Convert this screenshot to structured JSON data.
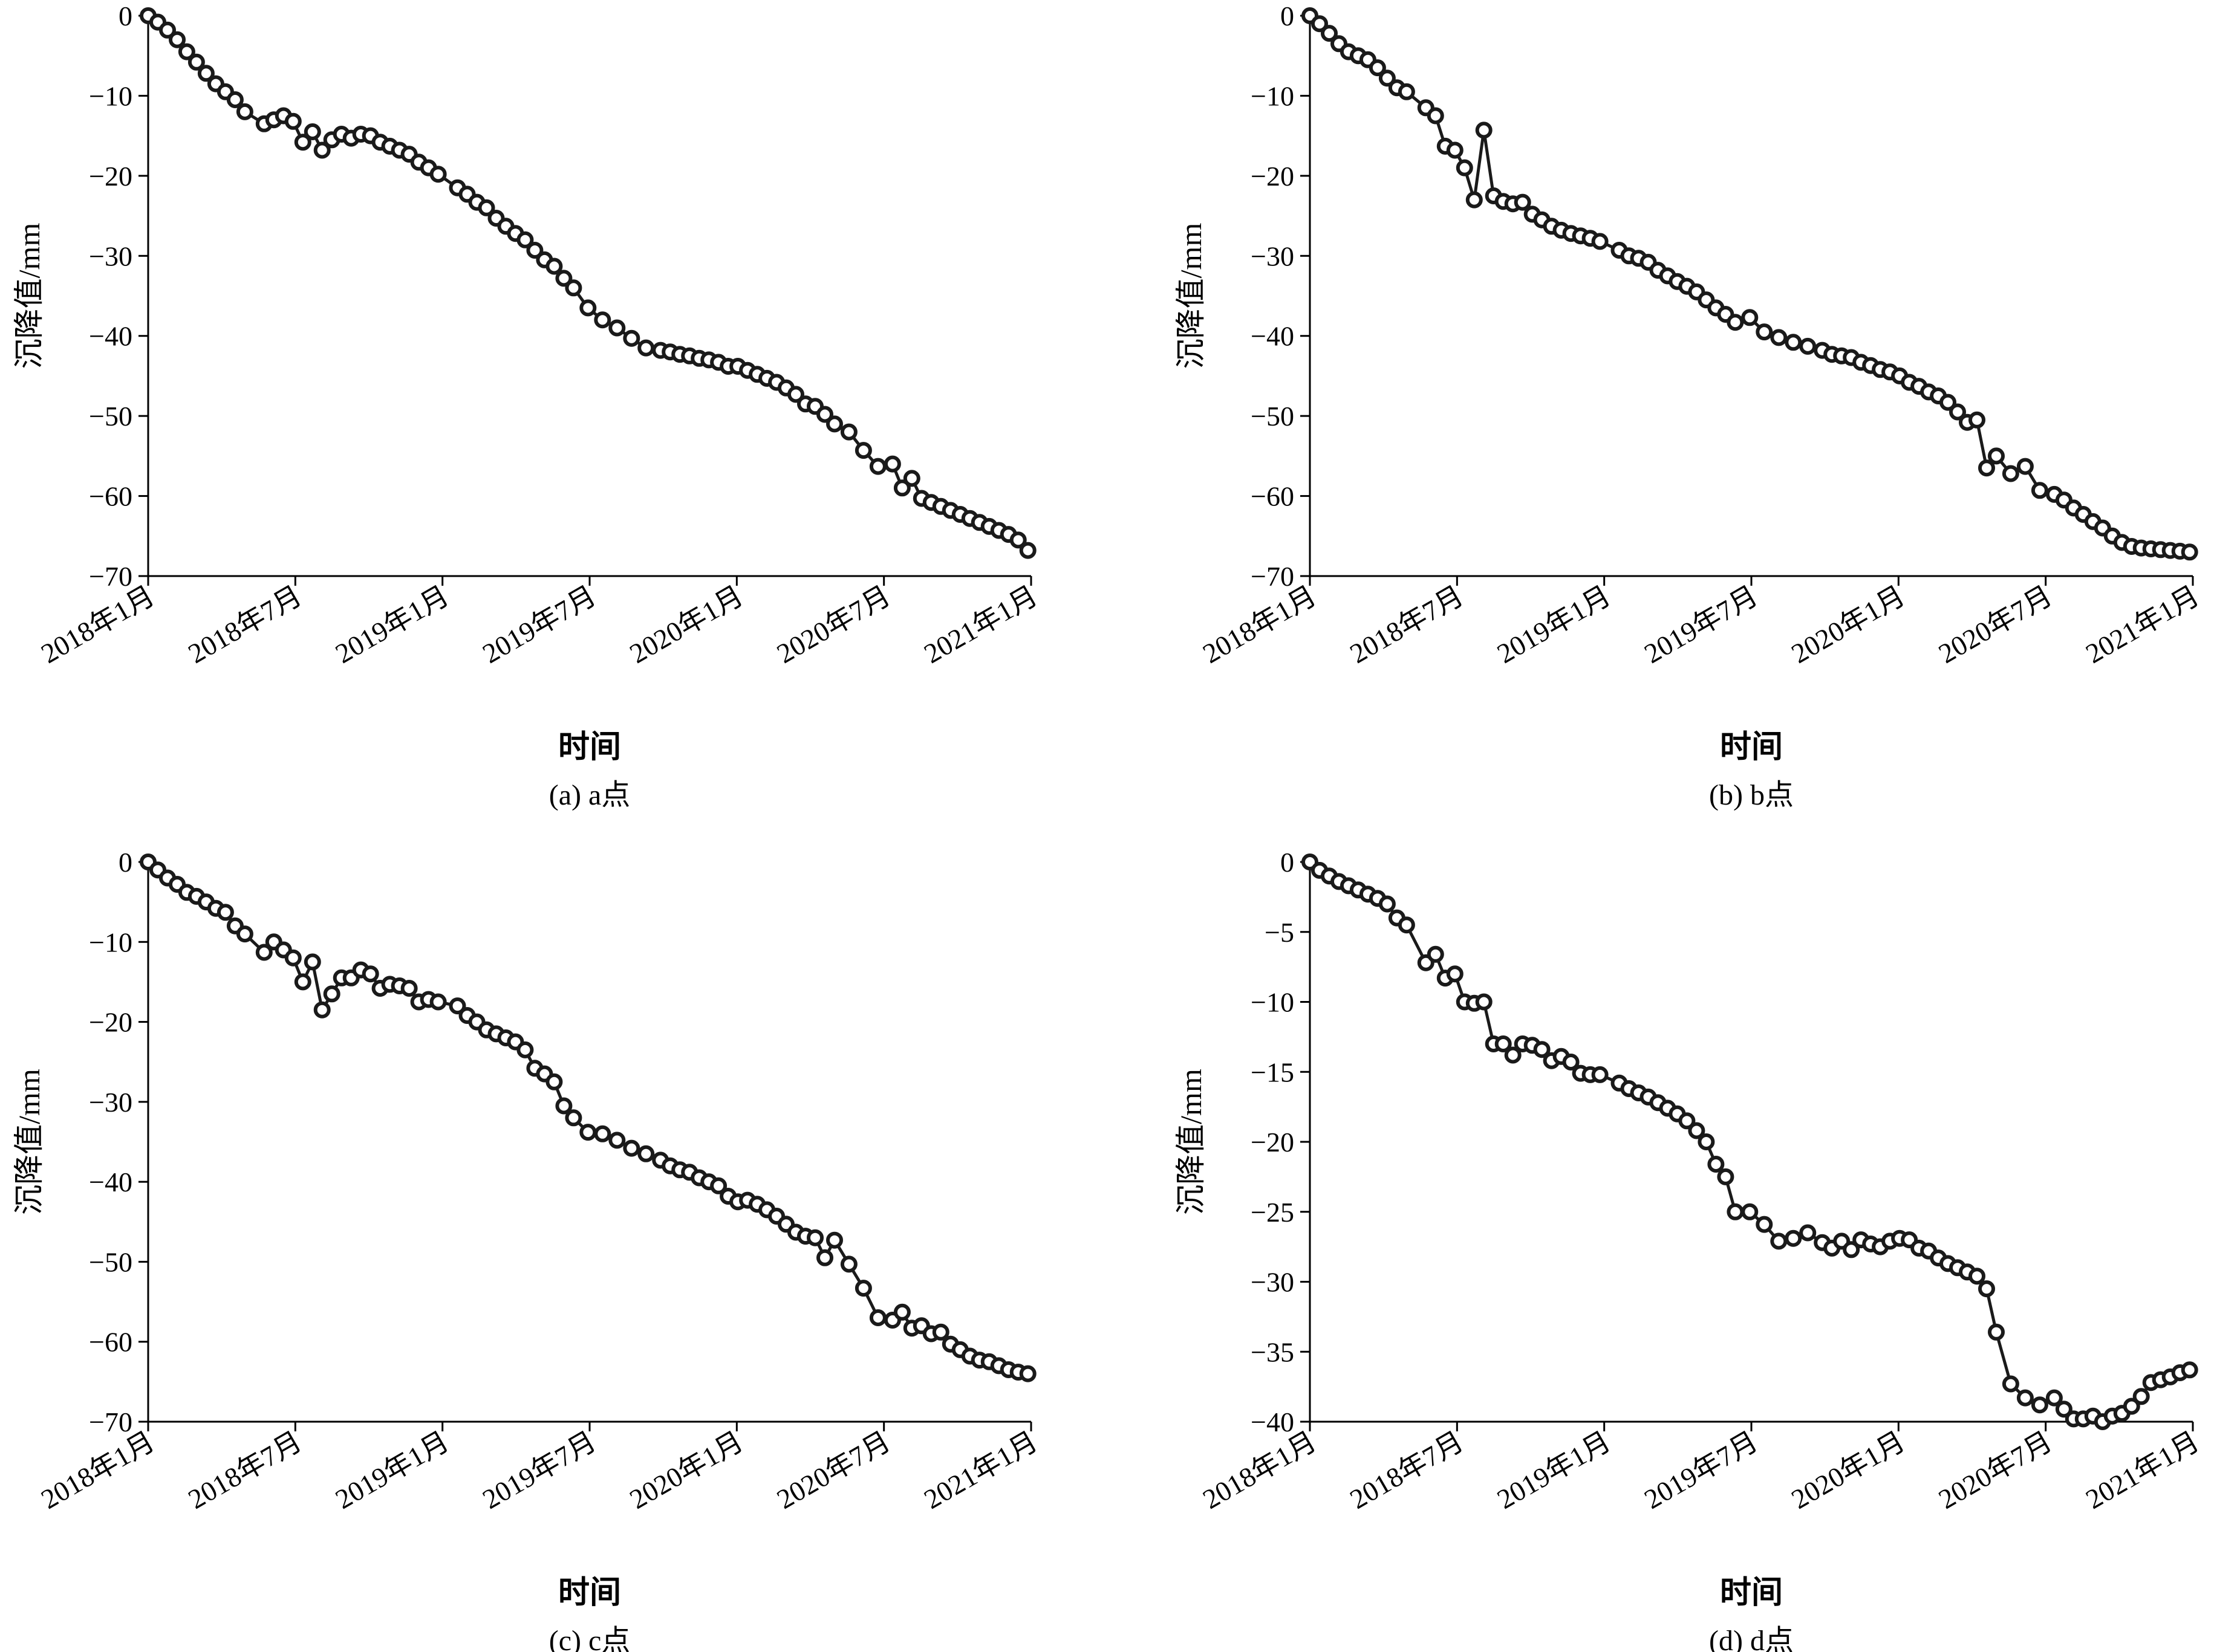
{
  "chart_data": [
    {
      "type": "line",
      "caption": "(a) a点",
      "xlabel": "时间",
      "ylabel": "沉降值/mm",
      "xlim": [
        "2018-01-01",
        "2021-01-01"
      ],
      "ylim": [
        -70,
        0
      ],
      "yticks": [
        0,
        -10,
        -20,
        -30,
        -40,
        -50,
        -60,
        -70
      ],
      "xticks": [
        "2018年1月",
        "2018年7月",
        "2019年1月",
        "2019年7月",
        "2020年1月",
        "2020年7月",
        "2021年1月"
      ],
      "series": [
        {
          "x": [
            "2018-01-01",
            "2018-01-13",
            "2018-01-25",
            "2018-02-06",
            "2018-02-18",
            "2018-03-02",
            "2018-03-14",
            "2018-03-26",
            "2018-04-07",
            "2018-04-19",
            "2018-05-01",
            "2018-05-25",
            "2018-06-06",
            "2018-06-18",
            "2018-06-30",
            "2018-07-12",
            "2018-07-24",
            "2018-08-05",
            "2018-08-17",
            "2018-08-29",
            "2018-09-10",
            "2018-09-22",
            "2018-10-04",
            "2018-10-16",
            "2018-10-28",
            "2018-11-09",
            "2018-11-21",
            "2018-12-03",
            "2018-12-15",
            "2018-12-27",
            "2019-01-20",
            "2019-02-01",
            "2019-02-13",
            "2019-02-25",
            "2019-03-09",
            "2019-03-21",
            "2019-04-02",
            "2019-04-14",
            "2019-04-26",
            "2019-05-08",
            "2019-05-20",
            "2019-06-01",
            "2019-06-13",
            "2019-07-01",
            "2019-07-19",
            "2019-08-06",
            "2019-08-24",
            "2019-09-11",
            "2019-09-29",
            "2019-10-11",
            "2019-10-23",
            "2019-11-04",
            "2019-11-16",
            "2019-11-28",
            "2019-12-10",
            "2019-12-22",
            "2020-01-03",
            "2020-01-15",
            "2020-01-27",
            "2020-02-08",
            "2020-02-20",
            "2020-03-03",
            "2020-03-15",
            "2020-03-27",
            "2020-04-08",
            "2020-04-20",
            "2020-05-02",
            "2020-05-20",
            "2020-06-07",
            "2020-06-25",
            "2020-07-13",
            "2020-07-25",
            "2020-08-06",
            "2020-08-18",
            "2020-08-30",
            "2020-09-11",
            "2020-09-23",
            "2020-10-05",
            "2020-10-17",
            "2020-10-29",
            "2020-11-10",
            "2020-11-22",
            "2020-12-04",
            "2020-12-16",
            "2020-12-28"
          ],
          "y": [
            0,
            -0.8,
            -1.8,
            -3,
            -4.5,
            -5.8,
            -7.2,
            -8.5,
            -9.5,
            -10.5,
            -12,
            -13.5,
            -13,
            -12.5,
            -13.2,
            -15.8,
            -14.5,
            -16.8,
            -15.5,
            -14.8,
            -15.3,
            -14.8,
            -15,
            -15.8,
            -16.3,
            -16.8,
            -17.3,
            -18.3,
            -19,
            -19.8,
            -21.5,
            -22.3,
            -23.3,
            -24,
            -25.3,
            -26.3,
            -27.2,
            -28,
            -29.3,
            -30.5,
            -31.3,
            -32.8,
            -34,
            -36.5,
            -38,
            -39,
            -40.3,
            -41.5,
            -41.8,
            -42,
            -42.3,
            -42.5,
            -42.8,
            -43,
            -43.3,
            -43.8,
            -43.8,
            -44.3,
            -44.8,
            -45.3,
            -45.8,
            -46.5,
            -47.3,
            -48.5,
            -48.8,
            -49.8,
            -51,
            -52,
            -54.3,
            -56.3,
            -56,
            -59,
            -57.8,
            -60.3,
            -60.8,
            -61.3,
            -61.8,
            -62.3,
            -62.8,
            -63.3,
            -63.8,
            -64.3,
            -64.8,
            -65.5,
            -66.8
          ]
        }
      ]
    },
    {
      "type": "line",
      "caption": "(b) b点",
      "xlabel": "时间",
      "ylabel": "沉降值/mm",
      "xlim": [
        "2018-01-01",
        "2021-01-01"
      ],
      "ylim": [
        -70,
        0
      ],
      "yticks": [
        0,
        -10,
        -20,
        -30,
        -40,
        -50,
        -60,
        -70
      ],
      "xticks": [
        "2018年1月",
        "2018年7月",
        "2019年1月",
        "2019年7月",
        "2020年1月",
        "2020年7月",
        "2021年1月"
      ],
      "series": [
        {
          "x": [
            "2018-01-01",
            "2018-01-13",
            "2018-01-25",
            "2018-02-06",
            "2018-02-18",
            "2018-03-02",
            "2018-03-14",
            "2018-03-26",
            "2018-04-07",
            "2018-04-19",
            "2018-05-01",
            "2018-05-25",
            "2018-06-06",
            "2018-06-18",
            "2018-06-30",
            "2018-07-12",
            "2018-07-24",
            "2018-08-05",
            "2018-08-17",
            "2018-08-29",
            "2018-09-10",
            "2018-09-22",
            "2018-10-04",
            "2018-10-16",
            "2018-10-28",
            "2018-11-09",
            "2018-11-21",
            "2018-12-03",
            "2018-12-15",
            "2018-12-27",
            "2019-01-20",
            "2019-02-01",
            "2019-02-13",
            "2019-02-25",
            "2019-03-09",
            "2019-03-21",
            "2019-04-02",
            "2019-04-14",
            "2019-04-26",
            "2019-05-08",
            "2019-05-20",
            "2019-06-01",
            "2019-06-13",
            "2019-07-01",
            "2019-07-19",
            "2019-08-06",
            "2019-08-24",
            "2019-09-11",
            "2019-09-29",
            "2019-10-11",
            "2019-10-23",
            "2019-11-04",
            "2019-11-16",
            "2019-11-28",
            "2019-12-10",
            "2019-12-22",
            "2020-01-03",
            "2020-01-15",
            "2020-01-27",
            "2020-02-08",
            "2020-02-20",
            "2020-03-03",
            "2020-03-15",
            "2020-03-27",
            "2020-04-08",
            "2020-04-20",
            "2020-05-02",
            "2020-05-20",
            "2020-06-07",
            "2020-06-25",
            "2020-07-13",
            "2020-07-25",
            "2020-08-06",
            "2020-08-18",
            "2020-08-30",
            "2020-09-11",
            "2020-09-23",
            "2020-10-05",
            "2020-10-17",
            "2020-10-29",
            "2020-11-10",
            "2020-11-22",
            "2020-12-04",
            "2020-12-16",
            "2020-12-28"
          ],
          "y": [
            0,
            -1,
            -2.2,
            -3.5,
            -4.5,
            -5,
            -5.5,
            -6.5,
            -7.8,
            -9,
            -9.5,
            -11.5,
            -12.5,
            -16.3,
            -16.8,
            -19,
            -23,
            -14.3,
            -22.5,
            -23.2,
            -23.5,
            -23.3,
            -24.8,
            -25.5,
            -26.3,
            -26.8,
            -27.2,
            -27.5,
            -27.8,
            -28.2,
            -29.3,
            -30,
            -30.3,
            -30.8,
            -31.8,
            -32.5,
            -33.2,
            -33.8,
            -34.5,
            -35.5,
            -36.5,
            -37.3,
            -38.3,
            -37.7,
            -39.5,
            -40.2,
            -40.8,
            -41.3,
            -41.8,
            -42.3,
            -42.5,
            -42.7,
            -43.3,
            -43.7,
            -44.2,
            -44.5,
            -45,
            -45.8,
            -46.3,
            -47,
            -47.5,
            -48.3,
            -49.5,
            -50.8,
            -50.5,
            -56.5,
            -55,
            -57.2,
            -56.3,
            -59.3,
            -59.8,
            -60.5,
            -61.5,
            -62.3,
            -63.2,
            -64,
            -65,
            -65.8,
            -66.3,
            -66.5,
            -66.6,
            -66.7,
            -66.8,
            -66.9,
            -67
          ]
        }
      ]
    },
    {
      "type": "line",
      "caption": "(c) c点",
      "xlabel": "时间",
      "ylabel": "沉降值/mm",
      "xlim": [
        "2018-01-01",
        "2021-01-01"
      ],
      "ylim": [
        -70,
        0
      ],
      "yticks": [
        0,
        -10,
        -20,
        -30,
        -40,
        -50,
        -60,
        -70
      ],
      "xticks": [
        "2018年1月",
        "2018年7月",
        "2019年1月",
        "2019年7月",
        "2020年1月",
        "2020年7月",
        "2021年1月"
      ],
      "series": [
        {
          "x": [
            "2018-01-01",
            "2018-01-13",
            "2018-01-25",
            "2018-02-06",
            "2018-02-18",
            "2018-03-02",
            "2018-03-14",
            "2018-03-26",
            "2018-04-07",
            "2018-04-19",
            "2018-05-01",
            "2018-05-25",
            "2018-06-06",
            "2018-06-18",
            "2018-06-30",
            "2018-07-12",
            "2018-07-24",
            "2018-08-05",
            "2018-08-17",
            "2018-08-29",
            "2018-09-10",
            "2018-09-22",
            "2018-10-04",
            "2018-10-16",
            "2018-10-28",
            "2018-11-09",
            "2018-11-21",
            "2018-12-03",
            "2018-12-15",
            "2018-12-27",
            "2019-01-20",
            "2019-02-01",
            "2019-02-13",
            "2019-02-25",
            "2019-03-09",
            "2019-03-21",
            "2019-04-02",
            "2019-04-14",
            "2019-04-26",
            "2019-05-08",
            "2019-05-20",
            "2019-06-01",
            "2019-06-13",
            "2019-07-01",
            "2019-07-19",
            "2019-08-06",
            "2019-08-24",
            "2019-09-11",
            "2019-09-29",
            "2019-10-11",
            "2019-10-23",
            "2019-11-04",
            "2019-11-16",
            "2019-11-28",
            "2019-12-10",
            "2019-12-22",
            "2020-01-03",
            "2020-01-15",
            "2020-01-27",
            "2020-02-08",
            "2020-02-20",
            "2020-03-03",
            "2020-03-15",
            "2020-03-27",
            "2020-04-08",
            "2020-04-20",
            "2020-05-02",
            "2020-05-20",
            "2020-06-07",
            "2020-06-25",
            "2020-07-13",
            "2020-07-25",
            "2020-08-06",
            "2020-08-18",
            "2020-08-30",
            "2020-09-11",
            "2020-09-23",
            "2020-10-05",
            "2020-10-17",
            "2020-10-29",
            "2020-11-10",
            "2020-11-22",
            "2020-12-04",
            "2020-12-16",
            "2020-12-28"
          ],
          "y": [
            0,
            -1,
            -2,
            -2.8,
            -3.8,
            -4.3,
            -5,
            -5.8,
            -6.3,
            -8,
            -9,
            -11.3,
            -10,
            -11,
            -12,
            -15,
            -12.5,
            -18.5,
            -16.5,
            -14.5,
            -14.5,
            -13.5,
            -14,
            -15.8,
            -15.3,
            -15.5,
            -15.8,
            -17.5,
            -17.2,
            -17.5,
            -18,
            -19.2,
            -20,
            -21,
            -21.5,
            -22,
            -22.5,
            -23.5,
            -25.8,
            -26.5,
            -27.5,
            -30.5,
            -32,
            -33.8,
            -34,
            -34.8,
            -35.8,
            -36.5,
            -37.3,
            -38,
            -38.5,
            -38.8,
            -39.5,
            -40,
            -40.5,
            -41.8,
            -42.5,
            -42.3,
            -42.8,
            -43.5,
            -44.3,
            -45.3,
            -46.3,
            -46.8,
            -47,
            -49.5,
            -47.3,
            -50.3,
            -53.3,
            -57,
            -57.3,
            -56.3,
            -58.3,
            -58,
            -59,
            -58.8,
            -60.3,
            -61,
            -61.8,
            -62.3,
            -62.5,
            -63,
            -63.5,
            -63.8,
            -64
          ]
        }
      ]
    },
    {
      "type": "line",
      "caption": "(d) d点",
      "xlabel": "时间",
      "ylabel": "沉降值/mm",
      "xlim": [
        "2018-01-01",
        "2021-01-01"
      ],
      "ylim": [
        -40,
        0
      ],
      "yticks": [
        0,
        -5,
        -10,
        -15,
        -20,
        -25,
        -30,
        -35,
        -40
      ],
      "xticks": [
        "2018年1月",
        "2018年7月",
        "2019年1月",
        "2019年7月",
        "2020年1月",
        "2020年7月",
        "2021年1月"
      ],
      "series": [
        {
          "x": [
            "2018-01-01",
            "2018-01-13",
            "2018-01-25",
            "2018-02-06",
            "2018-02-18",
            "2018-03-02",
            "2018-03-14",
            "2018-03-26",
            "2018-04-07",
            "2018-04-19",
            "2018-05-01",
            "2018-05-25",
            "2018-06-06",
            "2018-06-18",
            "2018-06-30",
            "2018-07-12",
            "2018-07-24",
            "2018-08-05",
            "2018-08-17",
            "2018-08-29",
            "2018-09-10",
            "2018-09-22",
            "2018-10-04",
            "2018-10-16",
            "2018-10-28",
            "2018-11-09",
            "2018-11-21",
            "2018-12-03",
            "2018-12-15",
            "2018-12-27",
            "2019-01-20",
            "2019-02-01",
            "2019-02-13",
            "2019-02-25",
            "2019-03-09",
            "2019-03-21",
            "2019-04-02",
            "2019-04-14",
            "2019-04-26",
            "2019-05-08",
            "2019-05-20",
            "2019-06-01",
            "2019-06-13",
            "2019-07-01",
            "2019-07-19",
            "2019-08-06",
            "2019-08-24",
            "2019-09-11",
            "2019-09-29",
            "2019-10-11",
            "2019-10-23",
            "2019-11-04",
            "2019-11-16",
            "2019-11-28",
            "2019-12-10",
            "2019-12-22",
            "2020-01-03",
            "2020-01-15",
            "2020-01-27",
            "2020-02-08",
            "2020-02-20",
            "2020-03-03",
            "2020-03-15",
            "2020-03-27",
            "2020-04-08",
            "2020-04-20",
            "2020-05-02",
            "2020-05-20",
            "2020-06-07",
            "2020-06-25",
            "2020-07-13",
            "2020-07-25",
            "2020-08-06",
            "2020-08-18",
            "2020-08-30",
            "2020-09-11",
            "2020-09-23",
            "2020-10-05",
            "2020-10-17",
            "2020-10-29",
            "2020-11-10",
            "2020-11-22",
            "2020-12-04",
            "2020-12-16",
            "2020-12-28"
          ],
          "y": [
            0,
            -0.6,
            -1,
            -1.4,
            -1.7,
            -2,
            -2.3,
            -2.6,
            -3,
            -4,
            -4.5,
            -7.2,
            -6.6,
            -8.3,
            -8,
            -10,
            -10.1,
            -10,
            -13,
            -13,
            -13.8,
            -13,
            -13.1,
            -13.4,
            -14.2,
            -13.9,
            -14.3,
            -15.1,
            -15.2,
            -15.2,
            -15.8,
            -16.2,
            -16.5,
            -16.8,
            -17.2,
            -17.6,
            -18,
            -18.5,
            -19.2,
            -20,
            -21.6,
            -22.5,
            -25,
            -25,
            -25.9,
            -27.1,
            -26.9,
            -26.5,
            -27.2,
            -27.6,
            -27.1,
            -27.7,
            -27,
            -27.3,
            -27.5,
            -27.1,
            -26.9,
            -27,
            -27.6,
            -27.8,
            -28.3,
            -28.7,
            -29,
            -29.3,
            -29.6,
            -30.5,
            -33.6,
            -37.3,
            -38.3,
            -38.8,
            -38.3,
            -39.1,
            -39.8,
            -39.8,
            -39.6,
            -40,
            -39.6,
            -39.4,
            -38.9,
            -38.2,
            -37.2,
            -37,
            -36.8,
            -36.5,
            -36.3
          ]
        }
      ]
    }
  ]
}
